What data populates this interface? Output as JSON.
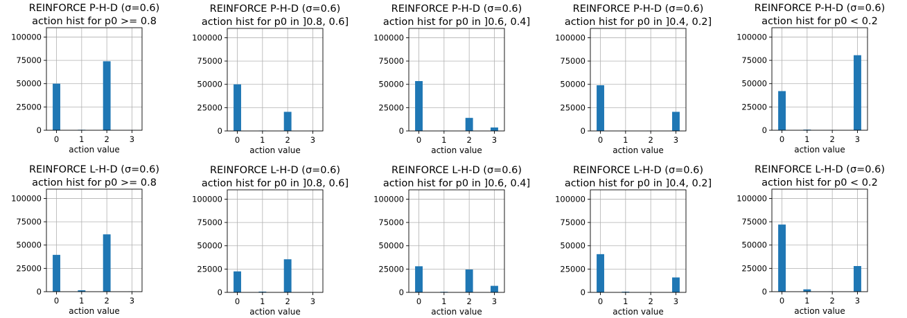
{
  "chart_data": [
    {
      "type": "bar",
      "title": [
        "REINFORCE P-H-D (σ=0.6)",
        "action hist for p0 >= 0.8"
      ],
      "xlabel": "action value",
      "ylim": [
        0,
        110000
      ],
      "yticks": [
        "0",
        "25000",
        "50000",
        "75000",
        "100000"
      ],
      "xticks": [
        "0",
        "1",
        "2",
        "3"
      ],
      "x": [
        0,
        1,
        2,
        3
      ],
      "values": [
        50000,
        500,
        74000,
        200
      ],
      "color": "#1f77b4",
      "grid": true
    },
    {
      "type": "bar",
      "title": [
        "REINFORCE P-H-D (σ=0.6)",
        "action hist for p0 in ]0.8, 0.6]"
      ],
      "xlabel": "action value",
      "ylim": [
        0,
        110000
      ],
      "yticks": [
        "0",
        "25000",
        "50000",
        "75000",
        "100000"
      ],
      "xticks": [
        "0",
        "1",
        "2",
        "3"
      ],
      "x": [
        0,
        1,
        2,
        3
      ],
      "values": [
        50000,
        400,
        20500,
        300
      ],
      "color": "#1f77b4",
      "grid": true
    },
    {
      "type": "bar",
      "title": [
        "REINFORCE P-H-D (σ=0.6)",
        "action hist for p0 in ]0.6, 0.4]"
      ],
      "xlabel": "action value",
      "ylim": [
        0,
        110000
      ],
      "yticks": [
        "0",
        "25000",
        "50000",
        "75000",
        "100000"
      ],
      "xticks": [
        "0",
        "1",
        "2",
        "3"
      ],
      "x": [
        0,
        1,
        2,
        3
      ],
      "values": [
        53500,
        400,
        14000,
        3700
      ],
      "color": "#1f77b4",
      "grid": true
    },
    {
      "type": "bar",
      "title": [
        "REINFORCE P-H-D (σ=0.6)",
        "action hist for p0 in ]0.4, 0.2]"
      ],
      "xlabel": "action value",
      "ylim": [
        0,
        110000
      ],
      "yticks": [
        "0",
        "25000",
        "50000",
        "75000",
        "100000"
      ],
      "xticks": [
        "0",
        "1",
        "2",
        "3"
      ],
      "x": [
        0,
        1,
        2,
        3
      ],
      "values": [
        49000,
        300,
        300,
        20500
      ],
      "color": "#1f77b4",
      "grid": true
    },
    {
      "type": "bar",
      "title": [
        "REINFORCE P-H-D (σ=0.6)",
        "action hist for p0 < 0.2"
      ],
      "xlabel": "action value",
      "ylim": [
        0,
        110000
      ],
      "yticks": [
        "0",
        "25000",
        "50000",
        "75000",
        "100000"
      ],
      "xticks": [
        "0",
        "1",
        "2",
        "3"
      ],
      "x": [
        0,
        1,
        2,
        3
      ],
      "values": [
        42000,
        700,
        200,
        80500
      ],
      "color": "#1f77b4",
      "grid": true
    },
    {
      "type": "bar",
      "title": [
        "REINFORCE L-H-D (σ=0.6)",
        "action hist for p0 >= 0.8"
      ],
      "xlabel": "action value",
      "ylim": [
        0,
        110000
      ],
      "yticks": [
        "0",
        "25000",
        "50000",
        "75000",
        "100000"
      ],
      "xticks": [
        "0",
        "1",
        "2",
        "3"
      ],
      "x": [
        0,
        1,
        2,
        3
      ],
      "values": [
        39500,
        1500,
        61500,
        300
      ],
      "color": "#1f77b4",
      "grid": true
    },
    {
      "type": "bar",
      "title": [
        "REINFORCE L-H-D (σ=0.6)",
        "action hist for p0 in ]0.8, 0.6]"
      ],
      "xlabel": "action value",
      "ylim": [
        0,
        110000
      ],
      "yticks": [
        "0",
        "25000",
        "50000",
        "75000",
        "100000"
      ],
      "xticks": [
        "0",
        "1",
        "2",
        "3"
      ],
      "x": [
        0,
        1,
        2,
        3
      ],
      "values": [
        22500,
        800,
        35500,
        300
      ],
      "color": "#1f77b4",
      "grid": true
    },
    {
      "type": "bar",
      "title": [
        "REINFORCE L-H-D (σ=0.6)",
        "action hist for p0 in ]0.6, 0.4]"
      ],
      "xlabel": "action value",
      "ylim": [
        0,
        110000
      ],
      "yticks": [
        "0",
        "25000",
        "50000",
        "75000",
        "100000"
      ],
      "xticks": [
        "0",
        "1",
        "2",
        "3"
      ],
      "x": [
        0,
        1,
        2,
        3
      ],
      "values": [
        28000,
        600,
        24500,
        7000
      ],
      "color": "#1f77b4",
      "grid": true
    },
    {
      "type": "bar",
      "title": [
        "REINFORCE L-H-D (σ=0.6)",
        "action hist for p0 in ]0.4, 0.2]"
      ],
      "xlabel": "action value",
      "ylim": [
        0,
        110000
      ],
      "yticks": [
        "0",
        "25000",
        "50000",
        "75000",
        "100000"
      ],
      "xticks": [
        "0",
        "1",
        "2",
        "3"
      ],
      "x": [
        0,
        1,
        2,
        3
      ],
      "values": [
        41000,
        700,
        300,
        16000
      ],
      "color": "#1f77b4",
      "grid": true
    },
    {
      "type": "bar",
      "title": [
        "REINFORCE L-H-D (σ=0.6)",
        "action hist for p0 < 0.2"
      ],
      "xlabel": "action value",
      "ylim": [
        0,
        110000
      ],
      "yticks": [
        "0",
        "25000",
        "50000",
        "75000",
        "100000"
      ],
      "xticks": [
        "0",
        "1",
        "2",
        "3"
      ],
      "x": [
        0,
        1,
        2,
        3
      ],
      "values": [
        72000,
        2500,
        300,
        27500
      ],
      "color": "#1f77b4",
      "grid": true
    }
  ]
}
